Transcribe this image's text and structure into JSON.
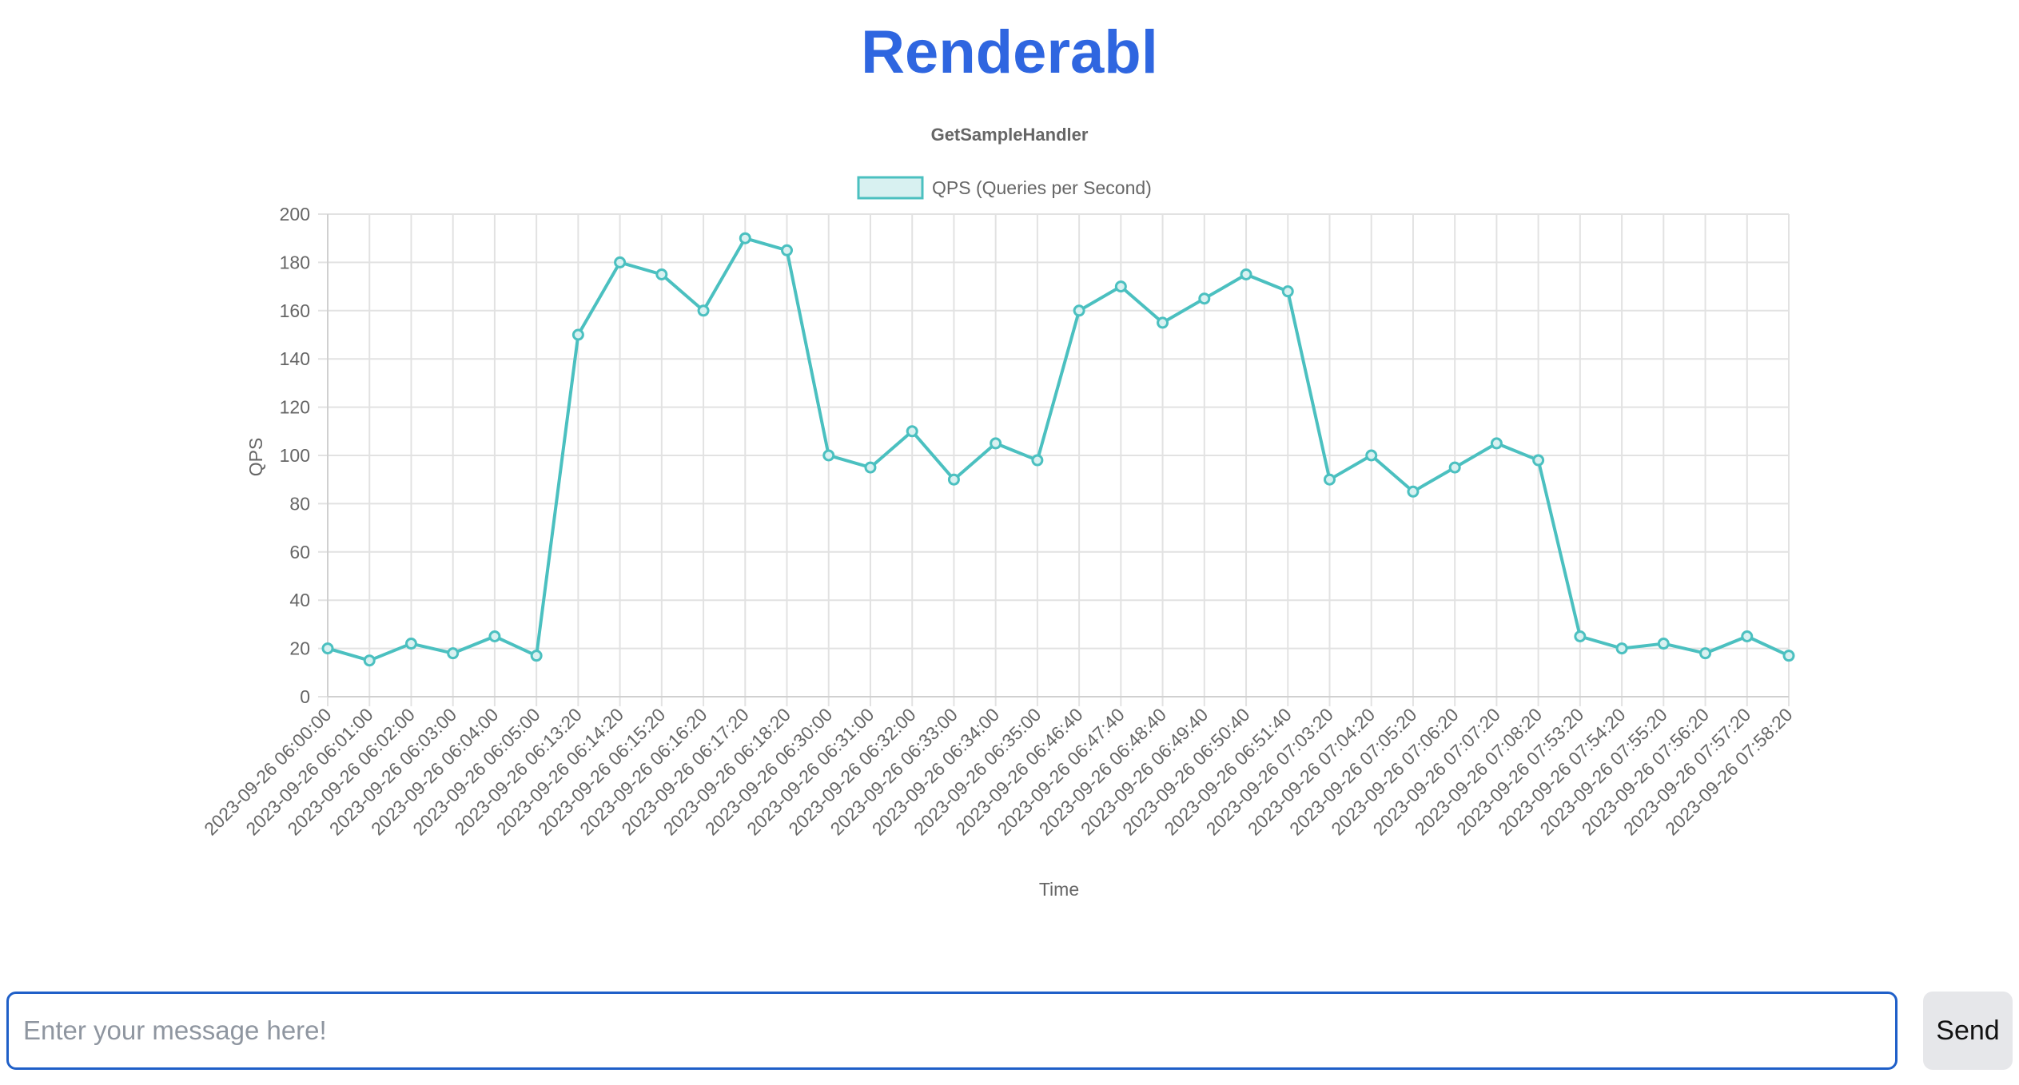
{
  "header": {
    "app_title": "Renderabl"
  },
  "composer": {
    "placeholder": "Enter your message here!",
    "send_label": "Send"
  },
  "colors": {
    "series": "#4bc0c0",
    "series_fill": "#d8f1f1",
    "brand": "#2f66e0"
  },
  "chart_data": {
    "type": "line",
    "title": "GetSampleHandler",
    "xlabel": "Time",
    "ylabel": "QPS",
    "ylim": [
      0,
      200
    ],
    "yticks": [
      0,
      20,
      40,
      60,
      80,
      100,
      120,
      140,
      160,
      180,
      200
    ],
    "grid": true,
    "legend_position": "top-center",
    "categories": [
      "2023-09-26 06:00:00",
      "2023-09-26 06:01:00",
      "2023-09-26 06:02:00",
      "2023-09-26 06:03:00",
      "2023-09-26 06:04:00",
      "2023-09-26 06:05:00",
      "2023-09-26 06:13:20",
      "2023-09-26 06:14:20",
      "2023-09-26 06:15:20",
      "2023-09-26 06:16:20",
      "2023-09-26 06:17:20",
      "2023-09-26 06:18:20",
      "2023-09-26 06:30:00",
      "2023-09-26 06:31:00",
      "2023-09-26 06:32:00",
      "2023-09-26 06:33:00",
      "2023-09-26 06:34:00",
      "2023-09-26 06:35:00",
      "2023-09-26 06:46:40",
      "2023-09-26 06:47:40",
      "2023-09-26 06:48:40",
      "2023-09-26 06:49:40",
      "2023-09-26 06:50:40",
      "2023-09-26 06:51:40",
      "2023-09-26 07:03:20",
      "2023-09-26 07:04:20",
      "2023-09-26 07:05:20",
      "2023-09-26 07:06:20",
      "2023-09-26 07:07:20",
      "2023-09-26 07:08:20",
      "2023-09-26 07:53:20",
      "2023-09-26 07:54:20",
      "2023-09-26 07:55:20",
      "2023-09-26 07:56:20",
      "2023-09-26 07:57:20",
      "2023-09-26 07:58:20"
    ],
    "series": [
      {
        "name": "QPS (Queries per Second)",
        "values": [
          20,
          15,
          22,
          18,
          25,
          17,
          150,
          180,
          175,
          160,
          190,
          185,
          100,
          95,
          110,
          90,
          105,
          98,
          160,
          170,
          155,
          165,
          175,
          168,
          90,
          100,
          85,
          95,
          105,
          98,
          25,
          20,
          22,
          18,
          25,
          17
        ]
      }
    ]
  }
}
